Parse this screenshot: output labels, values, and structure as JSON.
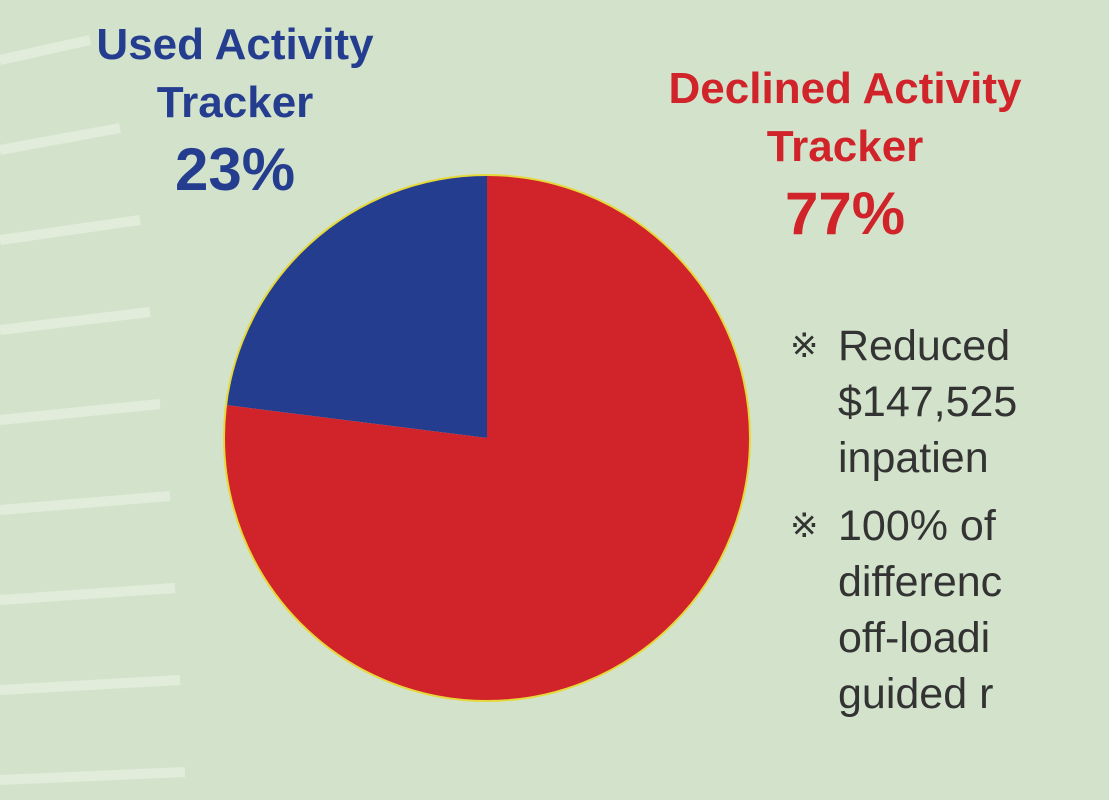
{
  "chart_data": {
    "type": "pie",
    "categories": [
      "Used Activity Tracker",
      "Declined Activity Tracker"
    ],
    "values": [
      23,
      77
    ],
    "value_labels": [
      "23%",
      "77%"
    ],
    "colors": [
      "#253d8f",
      "#d0232a"
    ],
    "annotations": {
      "marker": "※",
      "items": [
        [
          "Reduced",
          "$147,525",
          "inpatien"
        ],
        [
          "100% of",
          "differenc",
          "off-loadi",
          "guided r"
        ]
      ]
    }
  }
}
